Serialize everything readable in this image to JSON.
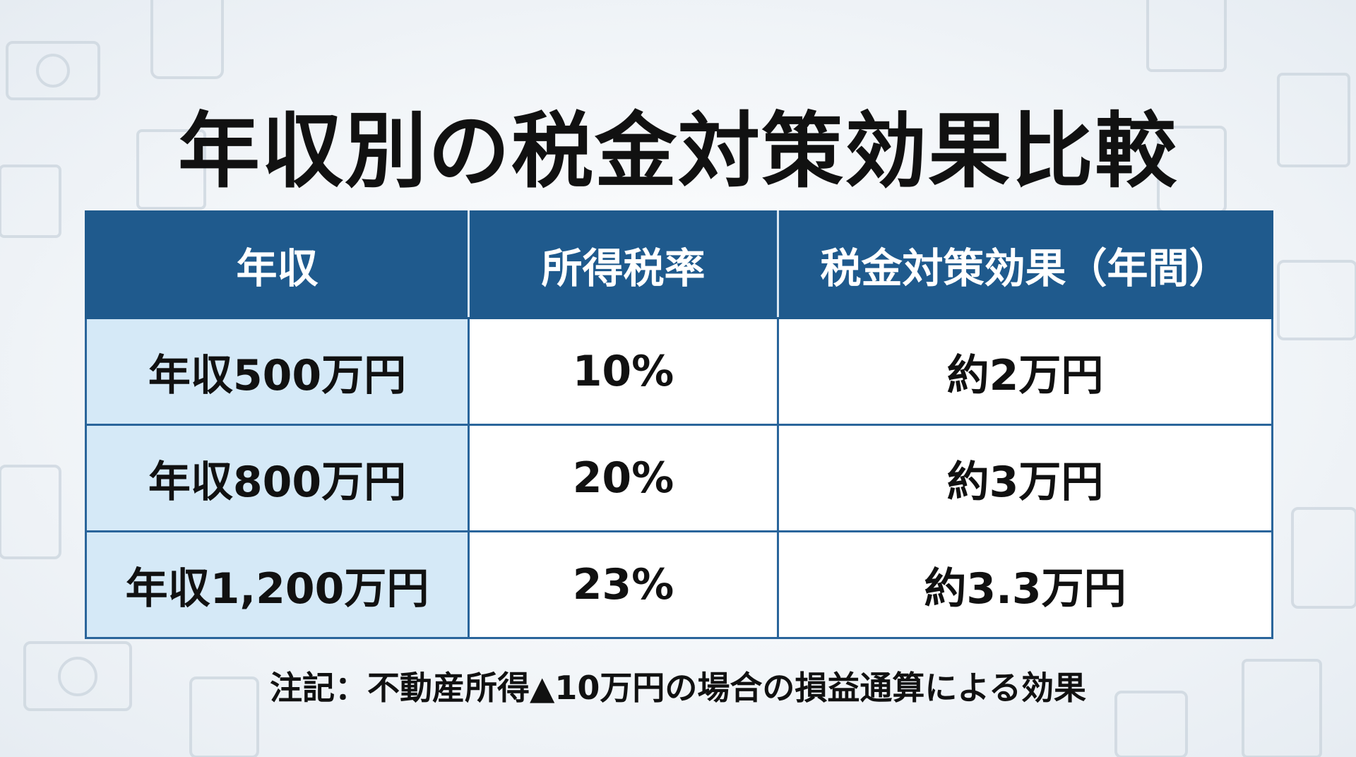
{
  "header": {
    "title": "年収別の税金対策効果比較"
  },
  "table": {
    "columns": [
      "年収",
      "所得税率",
      "税金対策効果（年間）"
    ],
    "rows": [
      [
        "年収500万円",
        "10%",
        "約2万円"
      ],
      [
        "年収800万円",
        "20%",
        "約3万円"
      ],
      [
        "年収1,200万円",
        "23%",
        "約3.3万円"
      ]
    ]
  },
  "note": "注記：不動産所得▲10万円の場合の損益通算による効果"
}
